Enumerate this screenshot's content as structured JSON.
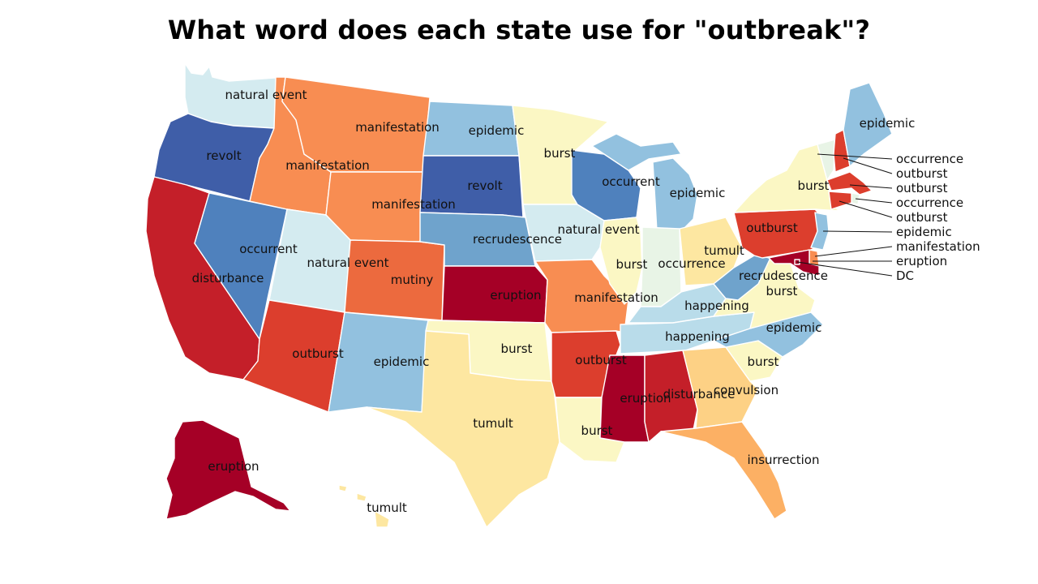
{
  "title": "What word does each state use for \"outbreak\"?",
  "colors": {
    "revolt": "#3f5ea8",
    "occurrent": "#4f81bd",
    "recrudescence": "#6fa3cc",
    "epidemic": "#92c1df",
    "natural event": "#d4ebf0",
    "happening": "#b9dcea",
    "occurrence": "#e8f4e6",
    "burst": "#fbf7c4",
    "tumult": "#fde7a1",
    "convulsion": "#fdd185",
    "insurrection": "#fcb064",
    "manifestation": "#f88d52",
    "mutiny": "#ec6a3e",
    "outburst": "#dc3e2d",
    "disturbance": "#c41f29",
    "eruption": "#a50026"
  },
  "states": {
    "WA": "natural event",
    "OR": "revolt",
    "CA": "disturbance",
    "NV": "occurrent",
    "ID": "manifestation",
    "MT": "manifestation",
    "WY": "manifestation",
    "UT": "natural event",
    "CO": "mutiny",
    "AZ": "outburst",
    "NM": "epidemic",
    "ND": "epidemic",
    "SD": "revolt",
    "NE": "recrudescence",
    "KS": "eruption",
    "OK": "burst",
    "TX": "tumult",
    "MN": "burst",
    "IA": "natural event",
    "MO": "manifestation",
    "AR": "outburst",
    "LA": "burst",
    "WI": "occurrent",
    "MI": "epidemic",
    "IL": "burst",
    "IN": "occurrence",
    "OH": "tumult",
    "KY": "happening",
    "TN": "happening",
    "MS": "eruption",
    "AL": "disturbance",
    "GA": "convulsion",
    "FL": "insurrection",
    "SC": "burst",
    "NC": "epidemic",
    "VA": "burst",
    "WV": "recrudescence",
    "PA": "outburst",
    "NY": "burst",
    "ME": "epidemic",
    "VT": "occurrence",
    "NH": "outburst",
    "MA": "outburst",
    "RI": "occurrence",
    "CT": "outburst",
    "NJ": "epidemic",
    "DE": "manifestation",
    "MD": "eruption",
    "DC": "DC",
    "AK": "eruption",
    "HI": "tumult"
  },
  "callouts": [
    "occurrence",
    "outburst",
    "outburst",
    "occurrence",
    "outburst",
    "epidemic",
    "manifestation",
    "eruption",
    "DC"
  ]
}
